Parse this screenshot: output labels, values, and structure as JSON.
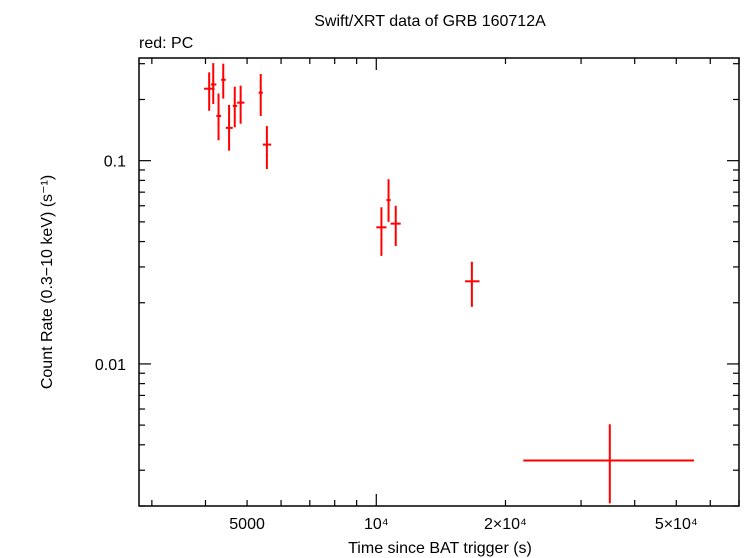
{
  "chart_data": {
    "type": "scatter",
    "title": "Swift/XRT data of GRB 160712A",
    "subtitle": "red: PC",
    "xlabel": "Time since BAT trigger (s)",
    "ylabel": "Count Rate (0.3−10 keV) (s⁻¹)",
    "xscale": "log",
    "yscale": "log",
    "xlim": [
      2800,
      70000
    ],
    "ylim": [
      0.002,
      0.32
    ],
    "x_tick_labels": [
      {
        "value": 5000,
        "label": "5000"
      },
      {
        "value": 10000,
        "label": "10⁴"
      },
      {
        "value": 20000,
        "label": "2×10⁴"
      },
      {
        "value": 50000,
        "label": "5×10⁴"
      }
    ],
    "y_tick_labels": [
      {
        "value": 0.1,
        "label": "0.1"
      },
      {
        "value": 0.01,
        "label": "0.01"
      }
    ],
    "series": [
      {
        "color": "#ff0000",
        "points": [
          {
            "x": 4080,
            "xmin": 3970,
            "xmax": 4200,
            "y": 0.226,
            "ymin": 0.176,
            "ymax": 0.272
          },
          {
            "x": 4170,
            "xmin": 4120,
            "xmax": 4240,
            "y": 0.237,
            "ymin": 0.19,
            "ymax": 0.302
          },
          {
            "x": 4290,
            "xmin": 4240,
            "xmax": 4350,
            "y": 0.166,
            "ymin": 0.126,
            "ymax": 0.214
          },
          {
            "x": 4400,
            "xmin": 4350,
            "xmax": 4460,
            "y": 0.25,
            "ymin": 0.202,
            "ymax": 0.3
          },
          {
            "x": 4540,
            "xmin": 4460,
            "xmax": 4630,
            "y": 0.145,
            "ymin": 0.112,
            "ymax": 0.188
          },
          {
            "x": 4680,
            "xmin": 4630,
            "xmax": 4740,
            "y": 0.186,
            "ymin": 0.146,
            "ymax": 0.231
          },
          {
            "x": 4830,
            "xmin": 4740,
            "xmax": 4930,
            "y": 0.193,
            "ymin": 0.152,
            "ymax": 0.234
          },
          {
            "x": 5380,
            "xmin": 5320,
            "xmax": 5440,
            "y": 0.216,
            "ymin": 0.166,
            "ymax": 0.267
          },
          {
            "x": 5560,
            "xmin": 5440,
            "xmax": 5690,
            "y": 0.12,
            "ymin": 0.091,
            "ymax": 0.148
          },
          {
            "x": 10280,
            "xmin": 10000,
            "xmax": 10560,
            "y": 0.047,
            "ymin": 0.034,
            "ymax": 0.059
          },
          {
            "x": 10680,
            "xmin": 10560,
            "xmax": 10800,
            "y": 0.064,
            "ymin": 0.05,
            "ymax": 0.081
          },
          {
            "x": 11100,
            "xmin": 10800,
            "xmax": 11400,
            "y": 0.049,
            "ymin": 0.038,
            "ymax": 0.06
          },
          {
            "x": 16700,
            "xmin": 16100,
            "xmax": 17400,
            "y": 0.0255,
            "ymin": 0.0191,
            "ymax": 0.0318
          },
          {
            "x": 35000,
            "xmin": 22000,
            "xmax": 55000,
            "y": 0.00335,
            "ymin": 0.00206,
            "ymax": 0.00505
          }
        ]
      }
    ]
  }
}
